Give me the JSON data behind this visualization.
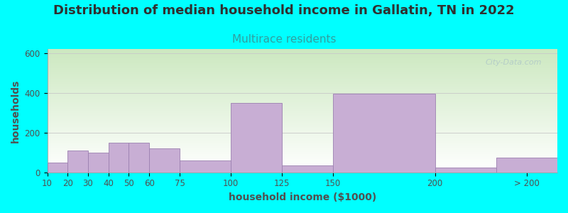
{
  "title": "Distribution of median household income in Gallatin, TN in 2022",
  "subtitle": "Multirace residents",
  "xlabel": "household income ($1000)",
  "ylabel": "households",
  "bg_color": "#00FFFF",
  "bar_color": "#c8aed4",
  "bar_edge_color": "#9b80b0",
  "gradient_top": "#cce8c0",
  "gradient_bottom": "#ffffff",
  "title_color": "#303030",
  "subtitle_color": "#30a0a0",
  "axis_label_color": "#505050",
  "tick_color": "#505050",
  "watermark_text": "City-Data.com",
  "watermark_color": "#b0c8c8",
  "bin_edges": [
    10,
    20,
    30,
    40,
    50,
    60,
    75,
    100,
    125,
    150,
    200,
    230,
    260
  ],
  "values": [
    50,
    110,
    100,
    150,
    150,
    120,
    60,
    350,
    35,
    395,
    25,
    75
  ],
  "tick_labels": [
    "10",
    "20",
    "30",
    "40",
    "50",
    "60",
    "75",
    "100",
    "125",
    "150",
    "200",
    "> 200"
  ],
  "tick_positions": [
    10,
    20,
    30,
    40,
    50,
    60,
    75,
    100,
    125,
    150,
    200,
    245
  ],
  "ylim": [
    0,
    620
  ],
  "yticks": [
    0,
    200,
    400,
    600
  ],
  "title_fontsize": 13,
  "subtitle_fontsize": 11,
  "axis_label_fontsize": 10,
  "tick_fontsize": 8.5
}
